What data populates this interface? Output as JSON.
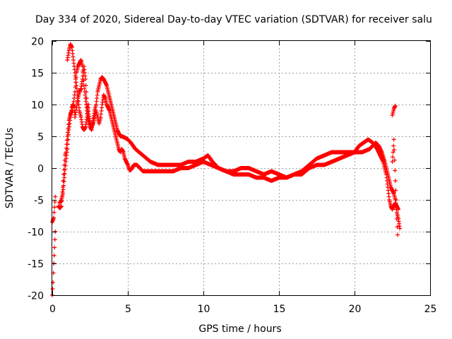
{
  "chart_data": {
    "type": "scatter",
    "title": "Day 334 of 2020, Sidereal Day-to-day VTEC variation (SDTVAR) for receiver salu",
    "xlabel": "GPS time / hours",
    "ylabel": "SDTVAR / TECUs",
    "xlim": [
      0,
      25
    ],
    "ylim": [
      -20,
      20
    ],
    "xticks": [
      "0",
      "5",
      "10",
      "15",
      "20",
      "25"
    ],
    "yticks": [
      "20",
      "15",
      "10",
      "5",
      "0",
      "-5",
      "-10",
      "-15",
      "-20"
    ],
    "grid": true,
    "legend": "none",
    "marker": "+",
    "series": [
      {
        "name": "SDTVAR",
        "color": "#ff0000",
        "tracks": [
          {
            "x": [
              0.0,
              0.05,
              0.1,
              0.15,
              0.2
            ],
            "y": [
              -20,
              -18,
              -15,
              -12.5,
              -10
            ]
          },
          {
            "x": [
              0.0,
              0.1,
              0.2
            ],
            "y": [
              -8.5,
              -7.8,
              -4.5
            ]
          },
          {
            "x": [
              0.4,
              0.5,
              0.6,
              0.7,
              0.75,
              0.8,
              0.85,
              0.9,
              1.0,
              1.1,
              1.2,
              1.3,
              1.35,
              1.45,
              1.5,
              1.6,
              1.7,
              1.8,
              1.9,
              2.0,
              2.1,
              2.2,
              2.3,
              2.4,
              2.5,
              2.6,
              2.7,
              2.8,
              2.9,
              3.0,
              3.1,
              3.2,
              3.3,
              3.4,
              3.5,
              3.6,
              3.7,
              3.8,
              3.9,
              4.0,
              4.1,
              4.2,
              4.3,
              4.4,
              4.5,
              4.6,
              4.7,
              4.8,
              4.9,
              5.0,
              5.1,
              5.2,
              5.4,
              5.6,
              5.8,
              6.0,
              6.2,
              6.5,
              7.0,
              7.5,
              8.0,
              8.5,
              9.0,
              9.5,
              10.0,
              10.5,
              11.0,
              11.5,
              12.0,
              12.5,
              13.0,
              13.5,
              14.0,
              14.5,
              15.0,
              15.5,
              16.0,
              16.5,
              17.0,
              17.5,
              18.0,
              18.5,
              19.0,
              19.5,
              20.0,
              20.3,
              20.6,
              20.9,
              21.2,
              21.5,
              21.7,
              21.9,
              22.1,
              22.2,
              22.3,
              22.4,
              22.5,
              22.6,
              22.7,
              22.8,
              22.9
            ],
            "y": [
              -6,
              -6.3,
              -6.0,
              -3,
              -1,
              0.5,
              2,
              2.5,
              5,
              7.5,
              8.5,
              9,
              10,
              9.5,
              8,
              9.5,
              11,
              12,
              12.5,
              14,
              16,
              14,
              10,
              8.5,
              7,
              6.5,
              7,
              8,
              9,
              8,
              7,
              8,
              10,
              11.5,
              11,
              10,
              9.5,
              9,
              8,
              7,
              6,
              5,
              4,
              3,
              2.5,
              3,
              2.5,
              1.5,
              1,
              0.5,
              -0.3,
              -0.3,
              0.5,
              0.5,
              0,
              -0.5,
              -0.5,
              -0.5,
              -0.5,
              -0.5,
              -0.5,
              0,
              0,
              0.5,
              1,
              0.5,
              0,
              -0.5,
              -1,
              -1,
              -1,
              -1.5,
              -1.5,
              -2,
              -1.5,
              -1.5,
              -1,
              -1,
              0,
              0.5,
              0.5,
              1,
              1.5,
              2,
              2.5,
              3.5,
              4,
              4.5,
              4,
              3,
              2,
              1,
              -1,
              -3,
              -5,
              -6,
              -6.5,
              -6,
              -5.5,
              -6,
              -6.5
            ]
          },
          {
            "x": [
              0.5,
              0.6,
              0.7,
              0.8,
              0.9,
              1.0,
              1.1,
              1.2,
              1.3,
              1.4,
              1.5,
              1.6,
              1.7,
              1.8,
              1.9,
              2.0,
              2.1,
              2.2,
              2.3,
              2.4,
              2.5,
              2.6,
              2.7,
              2.8,
              2.9,
              3.0,
              3.1,
              3.2,
              3.3,
              3.4,
              3.5,
              3.6,
              3.7,
              3.8,
              3.9,
              4.0,
              4.1,
              4.2,
              4.3,
              4.4,
              4.5,
              4.6,
              4.8,
              5.0,
              5.2,
              5.5,
              6.0,
              6.5,
              7.0,
              7.5,
              8.0,
              8.5,
              9.0,
              9.5,
              10.0,
              10.3,
              10.6,
              11.0,
              11.5,
              12.0,
              12.5,
              13.0,
              13.5,
              14.0,
              14.5,
              15.0,
              15.5,
              16.0,
              16.5,
              17.0,
              17.5,
              18.0,
              18.5,
              19.0,
              19.5,
              20.0,
              20.5,
              21.0,
              21.2,
              21.4,
              21.6,
              21.8,
              22.0,
              22.2,
              22.4,
              22.6,
              22.7,
              22.8,
              22.9,
              23.0
            ],
            "y": [
              -5.5,
              -5.0,
              -4.0,
              -1.5,
              1,
              3,
              6,
              8,
              9.5,
              10,
              12,
              15,
              16,
              16.5,
              17,
              16,
              13,
              11,
              9,
              7.5,
              6.5,
              6,
              7.5,
              9,
              10,
              12,
              13,
              14,
              14.3,
              14,
              13.5,
              13,
              12,
              11,
              10,
              9,
              8,
              7,
              6,
              5.5,
              5,
              5,
              4.8,
              4.5,
              4,
              3,
              2,
              1,
              0.5,
              0.5,
              0.5,
              0.5,
              1,
              1,
              1.5,
              2,
              1,
              0,
              -0.5,
              -0.5,
              0,
              0,
              -0.5,
              -1,
              -0.5,
              -1,
              -1.5,
              -1,
              -0.5,
              0.5,
              1.5,
              2,
              2.5,
              2.5,
              2.5,
              2.5,
              2.5,
              3,
              3.5,
              4,
              3.5,
              2.5,
              1,
              -1,
              -3,
              -4,
              -5,
              -7,
              -8,
              -9.5
            ]
          },
          {
            "x": [
              1.0,
              1.1,
              1.2,
              1.3,
              1.4,
              1.5,
              1.6,
              1.7,
              1.8,
              1.9,
              2.0,
              2.1,
              2.2,
              2.3,
              2.4
            ],
            "y": [
              17,
              18.5,
              19.5,
              19,
              17,
              15,
              13,
              11,
              9,
              8,
              6.5,
              6,
              6.5,
              8,
              10
            ]
          },
          {
            "x": [
              22.5,
              22.55,
              22.6,
              22.65,
              22.7
            ],
            "y": [
              8.3,
              8.8,
              9.3,
              9.6,
              9.8
            ]
          },
          {
            "x": [
              22.5,
              22.55,
              22.6,
              22.7,
              22.8,
              22.85
            ],
            "y": [
              1.0,
              2.5,
              4.5,
              -2.0,
              -8.0,
              -10.5
            ]
          }
        ]
      }
    ]
  }
}
